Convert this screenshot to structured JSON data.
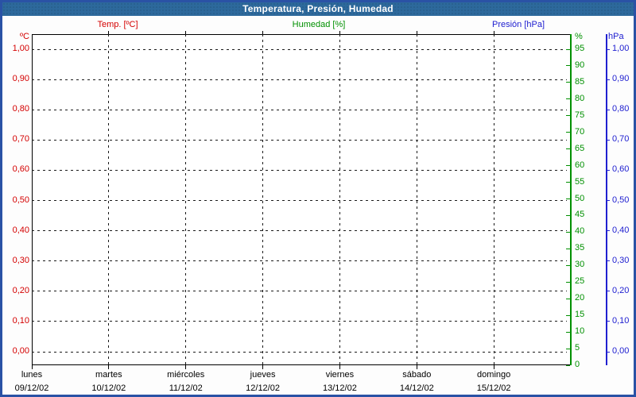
{
  "window": {
    "title": "Temperatura, Presión, Humedad"
  },
  "legend": {
    "temp": "Temp. [ºC]",
    "humidity": "Humedad [%]",
    "pressure": "Presión [hPa]"
  },
  "axes": {
    "temp": {
      "unit": "ºC",
      "ticks": [
        "1,00",
        "0,90",
        "0,80",
        "0,70",
        "0,60",
        "0,50",
        "0,40",
        "0,30",
        "0,20",
        "0,10",
        "0,00"
      ]
    },
    "humidity": {
      "unit": "%",
      "ticks": [
        "95",
        "90",
        "85",
        "80",
        "75",
        "70",
        "65",
        "60",
        "55",
        "50",
        "45",
        "40",
        "35",
        "30",
        "25",
        "20",
        "15",
        "10",
        "5",
        "0"
      ]
    },
    "pressure": {
      "unit": "hPa",
      "ticks": [
        "1,00",
        "0,90",
        "0,80",
        "0,70",
        "0,60",
        "0,50",
        "0,40",
        "0,30",
        "0,20",
        "0,10",
        "0,00"
      ]
    },
    "x": {
      "days": [
        {
          "name": "lunes",
          "date": "09/12/02"
        },
        {
          "name": "martes",
          "date": "10/12/02"
        },
        {
          "name": "miércoles",
          "date": "11/12/02"
        },
        {
          "name": "jueves",
          "date": "12/12/02"
        },
        {
          "name": "viernes",
          "date": "13/12/02"
        },
        {
          "name": "sábado",
          "date": "14/12/02"
        },
        {
          "name": "domingo",
          "date": "15/12/02"
        }
      ]
    }
  },
  "colors": {
    "temp": "#d40000",
    "humidity": "#009000",
    "pressure": "#2020d0",
    "titlebar_bg": "#2d699c",
    "window_border": "#2a52a5",
    "grid": "#1a1a1a"
  },
  "chart_data": {
    "type": "line",
    "title": "Temperatura, Presión, Humedad",
    "series": [
      {
        "name": "Temp. [ºC]",
        "axis": "temp",
        "color": "#d40000",
        "points": []
      },
      {
        "name": "Humedad [%]",
        "axis": "humidity",
        "color": "#009000",
        "points": []
      },
      {
        "name": "Presión [hPa]",
        "axis": "pressure",
        "color": "#2020d0",
        "points": []
      }
    ],
    "note": "Chart area is empty — no data traces are plotted for the shown week",
    "x": {
      "categories": [
        "lunes 09/12/02",
        "martes 10/12/02",
        "miércoles 11/12/02",
        "jueves 12/12/02",
        "viernes 13/12/02",
        "sábado 14/12/02",
        "domingo 15/12/02"
      ]
    },
    "y_axes": [
      {
        "id": "temp",
        "label": "ºC",
        "side": "left",
        "ylim": [
          0.0,
          1.0
        ],
        "tick_step": 0.1,
        "decimal_separator": ","
      },
      {
        "id": "humidity",
        "label": "%",
        "side": "right",
        "ylim": [
          0,
          95
        ],
        "tick_step": 5
      },
      {
        "id": "pressure",
        "label": "hPa",
        "side": "right",
        "ylim": [
          0.0,
          1.0
        ],
        "tick_step": 0.1,
        "decimal_separator": ","
      }
    ],
    "grid": "dashed, horizontal at temp/pressure ticks, vertical at day boundaries",
    "legend_position": "top"
  }
}
